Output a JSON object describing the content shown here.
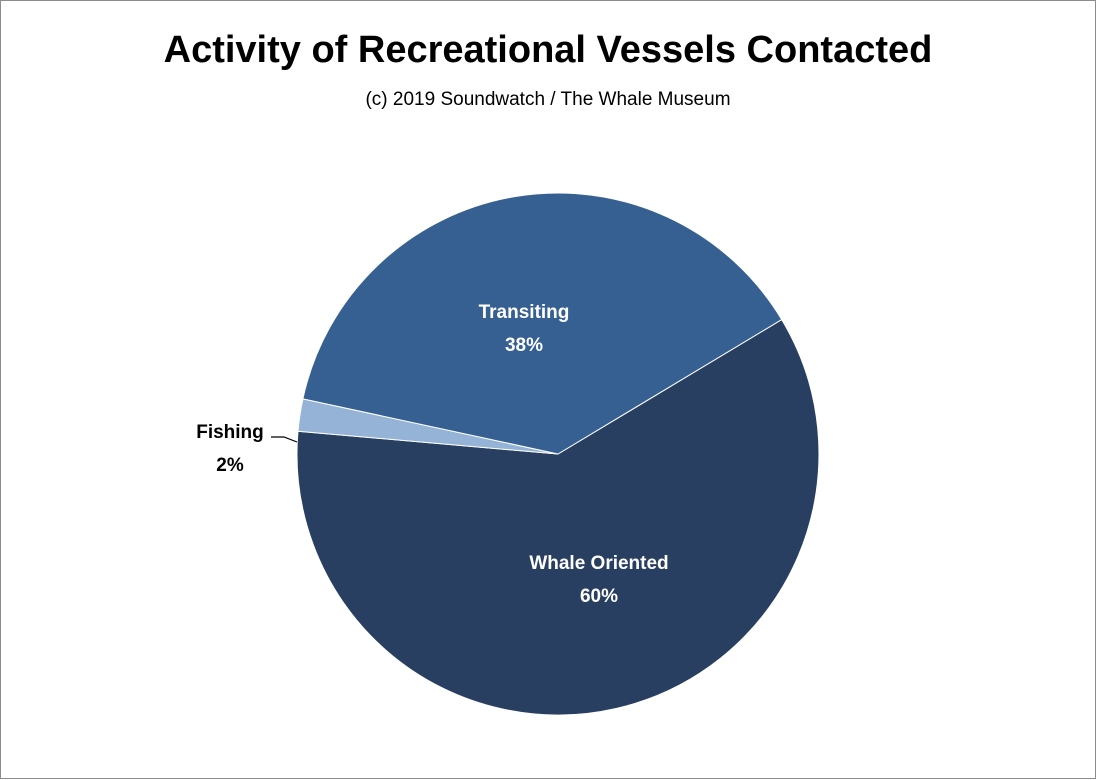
{
  "chart_data": {
    "type": "pie",
    "title": "Activity of Recreational Vessels Contacted",
    "subtitle": "(c) 2019 Soundwatch / The Whale Museum",
    "slices": [
      {
        "label": "Whale Oriented",
        "value": 60,
        "display": "60%",
        "color": "#283f61"
      },
      {
        "label": "Fishing",
        "value": 2,
        "display": "2%",
        "color": "#95b3d7"
      },
      {
        "label": "Transiting",
        "value": 38,
        "display": "38%",
        "color": "#376092"
      }
    ]
  }
}
